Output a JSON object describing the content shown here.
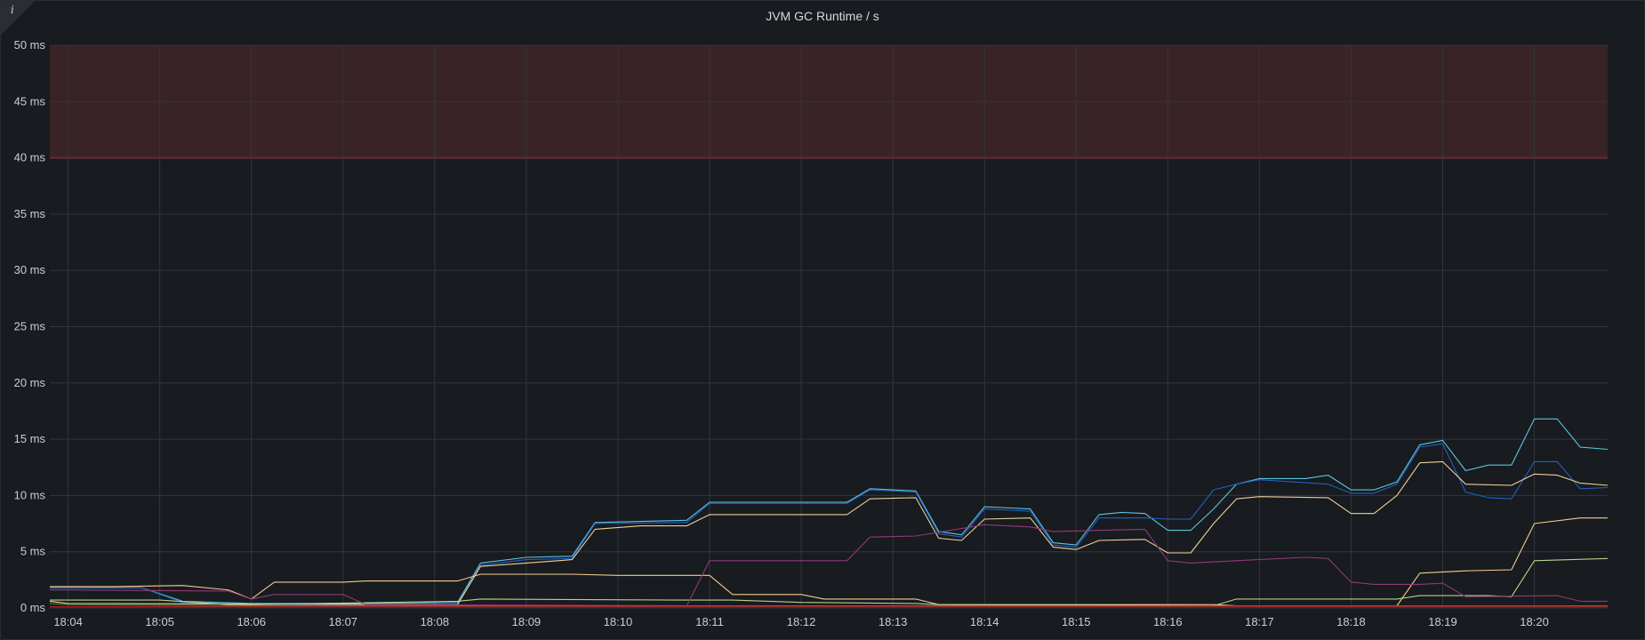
{
  "panel": {
    "title": "JVM GC Runtime / s",
    "info_icon": "info-icon"
  },
  "chart_data": {
    "type": "line",
    "title": "JVM GC Runtime / s",
    "xlabel": "",
    "ylabel": "",
    "ylim": [
      0,
      50
    ],
    "y_unit": "ms",
    "y_ticks": [
      "0 ms",
      "5 ms",
      "10 ms",
      "15 ms",
      "20 ms",
      "25 ms",
      "30 ms",
      "35 ms",
      "40 ms",
      "45 ms",
      "50 ms"
    ],
    "x_tick_labels": [
      "18:04",
      "18:05",
      "18:06",
      "18:07",
      "18:08",
      "18:09",
      "18:10",
      "18:11",
      "18:12",
      "18:13",
      "18:14",
      "18:15",
      "18:16",
      "18:17",
      "18:18",
      "18:19",
      "18:20"
    ],
    "x_range": [
      "18:03:48",
      "18:20:48"
    ],
    "grid": true,
    "threshold": {
      "value": 40,
      "region_top": 50,
      "line_color": "#e02f44",
      "fill_color": "#3a2327"
    },
    "series": [
      {
        "color": "#5ec4dd",
        "points": [
          [
            "18:03:48",
            1.8
          ],
          [
            "18:04:48",
            1.8
          ],
          [
            "18:05:15",
            0.6
          ],
          [
            "18:06:00",
            0.4
          ],
          [
            "18:07:00",
            0.4
          ],
          [
            "18:08:15",
            0.5
          ],
          [
            "18:08:30",
            4.0
          ],
          [
            "18:09:00",
            4.5
          ],
          [
            "18:09:30",
            4.6
          ],
          [
            "18:09:45",
            7.6
          ],
          [
            "18:10:45",
            7.8
          ],
          [
            "18:11:00",
            9.4
          ],
          [
            "18:12:30",
            9.4
          ],
          [
            "18:12:45",
            10.6
          ],
          [
            "18:13:15",
            10.4
          ],
          [
            "18:13:30",
            6.8
          ],
          [
            "18:13:45",
            6.5
          ],
          [
            "18:14:00",
            9.0
          ],
          [
            "18:14:30",
            8.8
          ],
          [
            "18:14:45",
            5.8
          ],
          [
            "18:15:00",
            5.6
          ],
          [
            "18:15:15",
            8.3
          ],
          [
            "18:15:30",
            8.5
          ],
          [
            "18:15:45",
            8.4
          ],
          [
            "18:16:00",
            6.9
          ],
          [
            "18:16:15",
            6.9
          ],
          [
            "18:16:30",
            8.8
          ],
          [
            "18:16:45",
            11.0
          ],
          [
            "18:17:00",
            11.5
          ],
          [
            "18:17:30",
            11.5
          ],
          [
            "18:17:45",
            11.8
          ],
          [
            "18:18:00",
            10.5
          ],
          [
            "18:18:15",
            10.5
          ],
          [
            "18:18:30",
            11.2
          ],
          [
            "18:18:45",
            14.5
          ],
          [
            "18:19:00",
            14.9
          ],
          [
            "18:19:15",
            12.2
          ],
          [
            "18:19:30",
            12.7
          ],
          [
            "18:19:45",
            12.7
          ],
          [
            "18:20:00",
            16.8
          ],
          [
            "18:20:15",
            16.8
          ],
          [
            "18:20:30",
            14.3
          ],
          [
            "18:20:48",
            14.1
          ]
        ]
      },
      {
        "color": "#1f60c4",
        "points": [
          [
            "18:03:48",
            1.8
          ],
          [
            "18:04:48",
            1.8
          ],
          [
            "18:05:15",
            0.5
          ],
          [
            "18:06:00",
            0.3
          ],
          [
            "18:08:15",
            0.3
          ],
          [
            "18:08:30",
            3.8
          ],
          [
            "18:09:00",
            4.3
          ],
          [
            "18:09:30",
            4.4
          ],
          [
            "18:09:45",
            7.5
          ],
          [
            "18:10:45",
            7.6
          ],
          [
            "18:11:00",
            9.3
          ],
          [
            "18:12:30",
            9.3
          ],
          [
            "18:12:45",
            10.5
          ],
          [
            "18:13:15",
            10.3
          ],
          [
            "18:13:30",
            6.6
          ],
          [
            "18:13:45",
            6.3
          ],
          [
            "18:14:00",
            8.8
          ],
          [
            "18:14:30",
            8.6
          ],
          [
            "18:14:45",
            5.6
          ],
          [
            "18:15:00",
            5.4
          ],
          [
            "18:15:15",
            8.0
          ],
          [
            "18:15:45",
            8.0
          ],
          [
            "18:16:00",
            7.9
          ],
          [
            "18:16:15",
            7.9
          ],
          [
            "18:16:30",
            10.5
          ],
          [
            "18:16:45",
            11.0
          ],
          [
            "18:17:00",
            11.4
          ],
          [
            "18:17:45",
            11.0
          ],
          [
            "18:18:00",
            10.2
          ],
          [
            "18:18:15",
            10.2
          ],
          [
            "18:18:30",
            11.0
          ],
          [
            "18:18:45",
            14.3
          ],
          [
            "18:19:00",
            14.6
          ],
          [
            "18:19:15",
            10.3
          ],
          [
            "18:19:30",
            9.8
          ],
          [
            "18:19:45",
            9.7
          ],
          [
            "18:20:00",
            13.0
          ],
          [
            "18:20:15",
            13.0
          ],
          [
            "18:20:30",
            10.6
          ],
          [
            "18:20:48",
            10.7
          ]
        ]
      },
      {
        "color": "#f2cc8f",
        "points": [
          [
            "18:03:48",
            1.9
          ],
          [
            "18:04:30",
            1.9
          ],
          [
            "18:05:15",
            2.0
          ],
          [
            "18:05:45",
            1.6
          ],
          [
            "18:06:00",
            0.8
          ],
          [
            "18:06:15",
            2.3
          ],
          [
            "18:07:00",
            2.3
          ],
          [
            "18:07:15",
            2.4
          ],
          [
            "18:08:15",
            2.4
          ],
          [
            "18:08:30",
            3.0
          ],
          [
            "18:09:30",
            3.0
          ],
          [
            "18:10:00",
            2.9
          ],
          [
            "18:11:00",
            2.9
          ],
          [
            "18:11:15",
            1.2
          ],
          [
            "18:12:00",
            1.2
          ],
          [
            "18:12:15",
            0.8
          ],
          [
            "18:13:15",
            0.8
          ],
          [
            "18:13:30",
            0.3
          ],
          [
            "18:15:00",
            0.3
          ],
          [
            "18:16:30",
            0.3
          ],
          [
            "18:16:45",
            0.2
          ],
          [
            "18:18:30",
            0.2
          ],
          [
            "18:18:45",
            3.1
          ],
          [
            "18:19:15",
            3.3
          ],
          [
            "18:19:45",
            3.4
          ],
          [
            "18:20:00",
            7.5
          ],
          [
            "18:20:30",
            8.0
          ],
          [
            "18:20:48",
            8.0
          ]
        ]
      },
      {
        "color": "#f0d09c",
        "points": [
          [
            "18:03:48",
            0.6
          ],
          [
            "18:04:00",
            0.4
          ],
          [
            "18:08:15",
            0.3
          ],
          [
            "18:08:30",
            3.7
          ],
          [
            "18:09:00",
            4.0
          ],
          [
            "18:09:30",
            4.3
          ],
          [
            "18:09:45",
            7.0
          ],
          [
            "18:10:15",
            7.3
          ],
          [
            "18:10:45",
            7.3
          ],
          [
            "18:11:00",
            8.3
          ],
          [
            "18:12:30",
            8.3
          ],
          [
            "18:12:45",
            9.7
          ],
          [
            "18:13:15",
            9.8
          ],
          [
            "18:13:30",
            6.2
          ],
          [
            "18:13:45",
            6.0
          ],
          [
            "18:14:00",
            7.9
          ],
          [
            "18:14:30",
            8.0
          ],
          [
            "18:14:45",
            5.4
          ],
          [
            "18:15:00",
            5.2
          ],
          [
            "18:15:15",
            6.0
          ],
          [
            "18:15:45",
            6.1
          ],
          [
            "18:16:00",
            4.9
          ],
          [
            "18:16:15",
            4.9
          ],
          [
            "18:16:30",
            7.5
          ],
          [
            "18:16:45",
            9.7
          ],
          [
            "18:17:00",
            9.9
          ],
          [
            "18:17:45",
            9.8
          ],
          [
            "18:18:00",
            8.4
          ],
          [
            "18:18:15",
            8.4
          ],
          [
            "18:18:30",
            10.0
          ],
          [
            "18:18:45",
            12.9
          ],
          [
            "18:19:00",
            13.0
          ],
          [
            "18:19:15",
            11.0
          ],
          [
            "18:19:45",
            10.9
          ],
          [
            "18:20:00",
            11.9
          ],
          [
            "18:20:15",
            11.8
          ],
          [
            "18:20:30",
            11.1
          ],
          [
            "18:20:48",
            10.9
          ]
        ]
      },
      {
        "color": "#b5d38a",
        "points": [
          [
            "18:03:48",
            0.7
          ],
          [
            "18:04:00",
            0.7
          ],
          [
            "18:05:00",
            0.7
          ],
          [
            "18:05:45",
            0.3
          ],
          [
            "18:06:00",
            0.3
          ],
          [
            "18:08:15",
            0.6
          ],
          [
            "18:08:30",
            0.8
          ],
          [
            "18:10:45",
            0.7
          ],
          [
            "18:11:15",
            0.7
          ],
          [
            "18:12:00",
            0.5
          ],
          [
            "18:13:15",
            0.4
          ],
          [
            "18:13:30",
            0.3
          ],
          [
            "18:16:30",
            0.2
          ],
          [
            "18:16:45",
            0.8
          ],
          [
            "18:18:30",
            0.8
          ],
          [
            "18:18:45",
            1.1
          ],
          [
            "18:19:30",
            1.1
          ],
          [
            "18:19:45",
            1.0
          ],
          [
            "18:20:00",
            4.2
          ],
          [
            "18:20:48",
            4.4
          ]
        ]
      },
      {
        "color": "#8f3b78",
        "points": [
          [
            "18:03:48",
            1.6
          ],
          [
            "18:04:00",
            1.6
          ],
          [
            "18:05:45",
            1.5
          ],
          [
            "18:06:00",
            0.8
          ],
          [
            "18:06:15",
            1.2
          ],
          [
            "18:07:00",
            1.2
          ],
          [
            "18:07:15",
            0.3
          ],
          [
            "18:10:45",
            0.2
          ],
          [
            "18:11:00",
            4.2
          ],
          [
            "18:12:30",
            4.2
          ],
          [
            "18:12:45",
            6.3
          ],
          [
            "18:13:15",
            6.4
          ],
          [
            "18:14:00",
            7.4
          ],
          [
            "18:14:30",
            7.2
          ],
          [
            "18:14:45",
            6.8
          ],
          [
            "18:15:45",
            7.0
          ],
          [
            "18:16:00",
            4.2
          ],
          [
            "18:16:15",
            4.0
          ],
          [
            "18:16:45",
            4.2
          ],
          [
            "18:17:30",
            4.5
          ],
          [
            "18:17:45",
            4.4
          ],
          [
            "18:18:00",
            2.3
          ],
          [
            "18:18:15",
            2.1
          ],
          [
            "18:18:45",
            2.1
          ],
          [
            "18:19:00",
            2.2
          ],
          [
            "18:19:15",
            1.0
          ],
          [
            "18:20:15",
            1.1
          ],
          [
            "18:20:30",
            0.6
          ],
          [
            "18:20:48",
            0.6
          ]
        ]
      },
      {
        "color": "#37872d",
        "points": [
          [
            "18:03:48",
            0.4
          ],
          [
            "18:04:00",
            0.3
          ],
          [
            "18:06:00",
            0.2
          ],
          [
            "18:08:00",
            0.2
          ],
          [
            "18:20:48",
            0.2
          ]
        ]
      },
      {
        "color": "#c4162a",
        "points": [
          [
            "18:03:48",
            0.1
          ],
          [
            "18:20:48",
            0.1
          ]
        ]
      }
    ]
  }
}
